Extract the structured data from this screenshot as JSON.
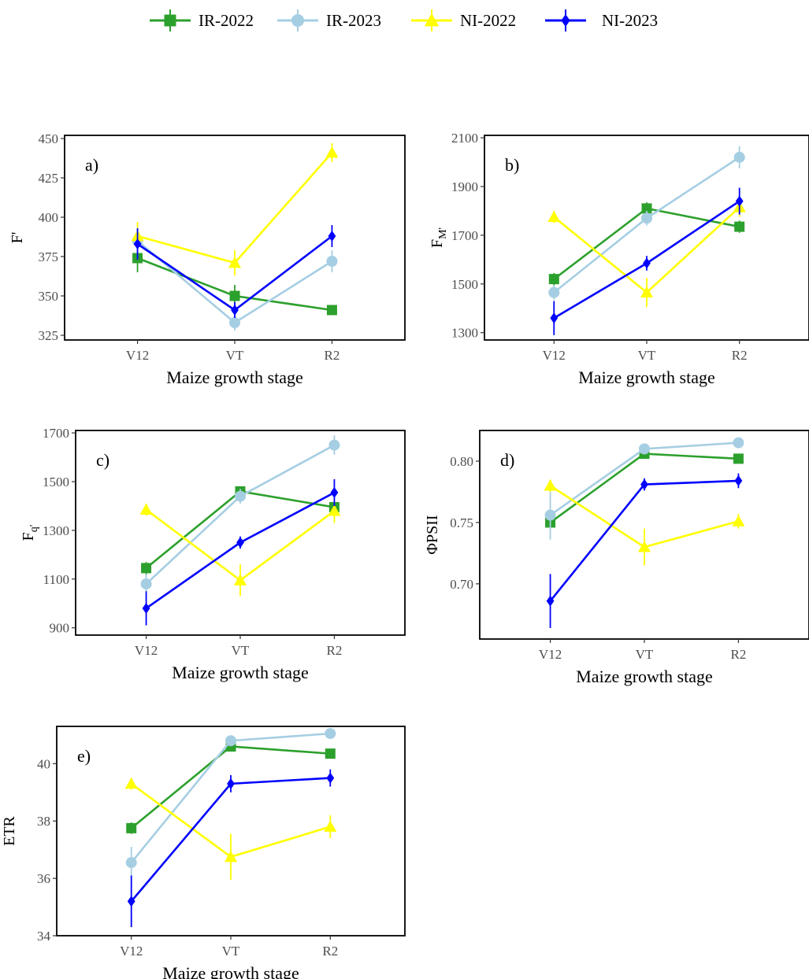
{
  "legend": [
    {
      "name": "IR-2022",
      "color": "#2ca02c",
      "marker": "square"
    },
    {
      "name": "IR-2023",
      "color": "#a6cee3",
      "marker": "circle"
    },
    {
      "name": "NI-2022",
      "color": "#ffff00",
      "marker": "triangle"
    },
    {
      "name": "NI-2023",
      "color": "#0000ff",
      "marker": "diamond"
    }
  ],
  "chart_data": [
    {
      "type": "line",
      "panel_label": "a)",
      "ylabel": "F'",
      "ylabel_sub": "",
      "xlabel": "Maize growth stage",
      "categories": [
        "V12",
        "VT",
        "R2"
      ],
      "ylim": [
        322,
        452
      ],
      "yticks": [
        325,
        350,
        375,
        400,
        425,
        450
      ],
      "tick_decimals": 0,
      "series": [
        {
          "name": "IR-2022",
          "values": [
            374,
            350,
            341
          ],
          "errors": [
            9,
            7,
            3
          ]
        },
        {
          "name": "IR-2023",
          "values": [
            385,
            333,
            372
          ],
          "errors": [
            7,
            5,
            7
          ]
        },
        {
          "name": "NI-2022",
          "values": [
            388,
            371,
            441
          ],
          "errors": [
            9,
            8,
            6
          ]
        },
        {
          "name": "NI-2023",
          "values": [
            383,
            341,
            388
          ],
          "errors": [
            10,
            5,
            7
          ]
        }
      ]
    },
    {
      "type": "line",
      "panel_label": "b)",
      "ylabel": "F",
      "ylabel_sub": "M'",
      "xlabel": "Maize growth stage",
      "categories": [
        "V12",
        "VT",
        "R2"
      ],
      "ylim": [
        1270,
        2110
      ],
      "yticks": [
        1300,
        1500,
        1700,
        1900,
        2100
      ],
      "tick_decimals": 0,
      "series": [
        {
          "name": "IR-2022",
          "values": [
            1520,
            1810,
            1735
          ],
          "errors": [
            25,
            25,
            25
          ]
        },
        {
          "name": "IR-2023",
          "values": [
            1465,
            1770,
            2020
          ],
          "errors": [
            30,
            30,
            45
          ]
        },
        {
          "name": "NI-2022",
          "values": [
            1775,
            1465,
            1815
          ],
          "errors": [
            25,
            60,
            40
          ]
        },
        {
          "name": "NI-2023",
          "values": [
            1360,
            1585,
            1840
          ],
          "errors": [
            70,
            30,
            55
          ]
        }
      ]
    },
    {
      "type": "line",
      "panel_label": "c)",
      "ylabel": "F",
      "ylabel_sub": "q'",
      "xlabel": "Maize growth stage",
      "categories": [
        "V12",
        "VT",
        "R2"
      ],
      "ylim": [
        870,
        1710
      ],
      "yticks": [
        900,
        1100,
        1300,
        1500,
        1700
      ],
      "tick_decimals": 0,
      "series": [
        {
          "name": "IR-2022",
          "values": [
            1145,
            1460,
            1395
          ],
          "errors": [
            25,
            20,
            20
          ]
        },
        {
          "name": "IR-2023",
          "values": [
            1080,
            1440,
            1650
          ],
          "errors": [
            40,
            30,
            40
          ]
        },
        {
          "name": "NI-2022",
          "values": [
            1385,
            1095,
            1380
          ],
          "errors": [
            25,
            65,
            50
          ]
        },
        {
          "name": "NI-2023",
          "values": [
            980,
            1250,
            1455
          ],
          "errors": [
            70,
            25,
            55
          ]
        }
      ]
    },
    {
      "type": "line",
      "panel_label": "d)",
      "ylabel": "ΦPSII",
      "ylabel_sub": "",
      "xlabel": "Maize growth stage",
      "categories": [
        "V12",
        "VT",
        "R2"
      ],
      "ylim": [
        0.655,
        0.825
      ],
      "yticks": [
        0.7,
        0.75,
        0.8
      ],
      "tick_decimals": 2,
      "series": [
        {
          "name": "IR-2022",
          "values": [
            0.75,
            0.806,
            0.802
          ],
          "errors": [
            0.004,
            0.003,
            0.003
          ]
        },
        {
          "name": "IR-2023",
          "values": [
            0.756,
            0.81,
            0.815
          ],
          "errors": [
            0.02,
            0.003,
            0.002
          ]
        },
        {
          "name": "NI-2022",
          "values": [
            0.78,
            0.73,
            0.751
          ],
          "errors": [
            0.005,
            0.015,
            0.006
          ]
        },
        {
          "name": "NI-2023",
          "values": [
            0.686,
            0.781,
            0.784
          ],
          "errors": [
            0.022,
            0.005,
            0.006
          ]
        }
      ]
    },
    {
      "type": "line",
      "panel_label": "e)",
      "ylabel": "ETR",
      "ylabel_sub": "",
      "xlabel": "Maize growth stage",
      "categories": [
        "V12",
        "VT",
        "R2"
      ],
      "ylim": [
        34,
        41.3
      ],
      "yticks": [
        34,
        36,
        38,
        40
      ],
      "tick_decimals": 0,
      "series": [
        {
          "name": "IR-2022",
          "values": [
            37.75,
            40.6,
            40.35
          ],
          "errors": [
            0.2,
            0.15,
            0.15
          ]
        },
        {
          "name": "IR-2023",
          "values": [
            36.55,
            40.8,
            41.05
          ],
          "errors": [
            0.55,
            0.15,
            0.1
          ]
        },
        {
          "name": "NI-2022",
          "values": [
            39.3,
            36.75,
            37.8
          ],
          "errors": [
            0.2,
            0.8,
            0.4
          ]
        },
        {
          "name": "NI-2023",
          "values": [
            35.2,
            39.3,
            39.5
          ],
          "errors": [
            0.9,
            0.3,
            0.3
          ]
        }
      ]
    }
  ]
}
